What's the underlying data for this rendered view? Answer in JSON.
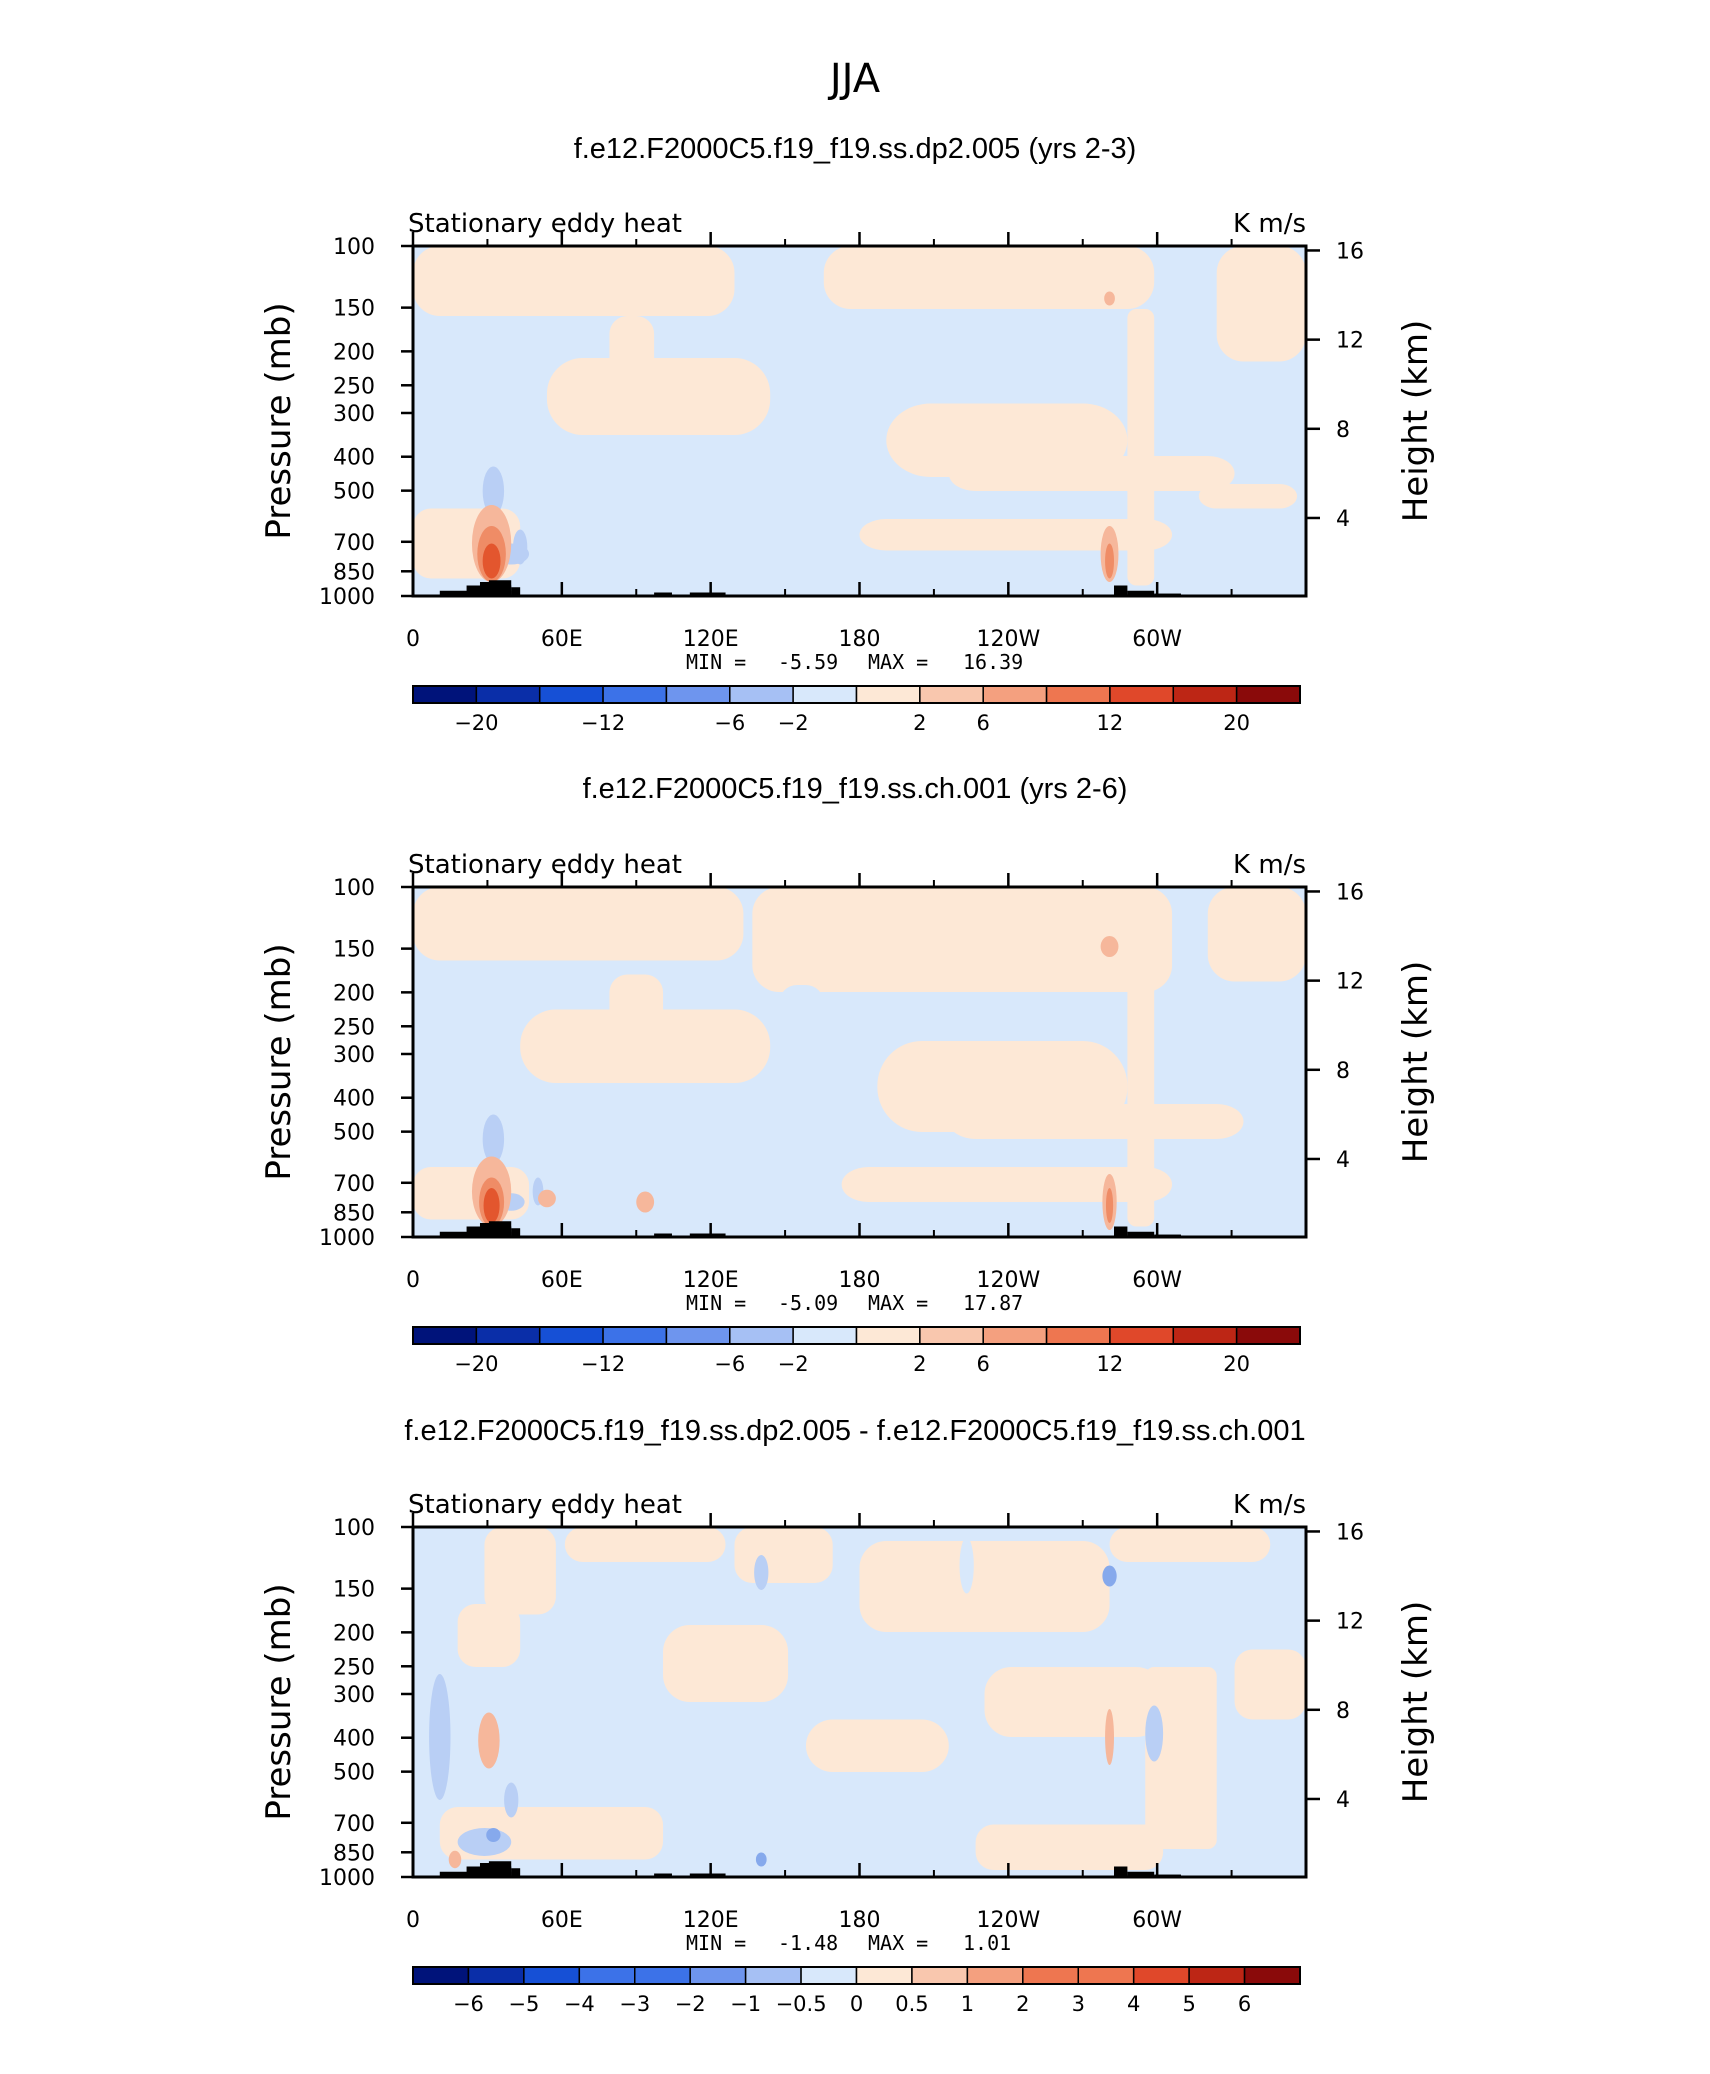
{
  "figure_title": "JJA",
  "colors": {
    "neg1": "#d8e8fb",
    "pos1": "#fde8d6",
    "neg2": "#b9cff5",
    "pos2": "#f6b79b",
    "pos3": "#ef8c66",
    "pos4": "#e3562e",
    "neg3": "#86a9ec",
    "topo": "#000000"
  },
  "colorbar_colors": [
    "#00137a",
    "#0a2ea8",
    "#1650d6",
    "#3c72e8",
    "#6e95ee",
    "#a6c0f4",
    "#d8e8fb",
    "#fde8d6",
    "#f9c7ae",
    "#f4a07f",
    "#ee7650",
    "#e0482a",
    "#bd2615",
    "#8a0a0a"
  ],
  "chart_data": [
    {
      "type": "heatmap",
      "title": "f.e12.F2000C5.f19_f19.ss.dp2.005 (yrs 2-3)",
      "left_label": "Stationary eddy heat",
      "units": "K m/s",
      "ylabel": "Pressure (mb)",
      "y2label": "Height (km)",
      "x_ticks": [
        "0",
        "60E",
        "120E",
        "180",
        "120W",
        "60W"
      ],
      "y_ticks": [
        "100",
        "150",
        "200",
        "250",
        "300",
        "400",
        "500",
        "700",
        "850",
        "1000"
      ],
      "y2_ticks": [
        "16",
        "12",
        "8",
        "4"
      ],
      "min_label": "MIN =",
      "min_value": "-5.59",
      "max_label": "MAX =",
      "max_value": "16.39",
      "colorbar_labels": [
        "−20",
        "−12",
        "−6",
        "−2",
        "2",
        "6",
        "12",
        "20"
      ]
    },
    {
      "type": "heatmap",
      "title": "f.e12.F2000C5.f19_f19.ss.ch.001 (yrs 2-6)",
      "left_label": "Stationary eddy heat",
      "units": "K m/s",
      "ylabel": "Pressure (mb)",
      "y2label": "Height (km)",
      "x_ticks": [
        "0",
        "60E",
        "120E",
        "180",
        "120W",
        "60W"
      ],
      "y_ticks": [
        "100",
        "150",
        "200",
        "250",
        "300",
        "400",
        "500",
        "700",
        "850",
        "1000"
      ],
      "y2_ticks": [
        "16",
        "12",
        "8",
        "4"
      ],
      "min_label": "MIN =",
      "min_value": "-5.09",
      "max_label": "MAX =",
      "max_value": "17.87",
      "colorbar_labels": [
        "−20",
        "−12",
        "−6",
        "−2",
        "2",
        "6",
        "12",
        "20"
      ]
    },
    {
      "type": "heatmap",
      "title": "f.e12.F2000C5.f19_f19.ss.dp2.005 - f.e12.F2000C5.f19_f19.ss.ch.001",
      "left_label": "Stationary eddy heat",
      "units": "K m/s",
      "ylabel": "Pressure (mb)",
      "y2label": "Height (km)",
      "x_ticks": [
        "0",
        "60E",
        "120E",
        "180",
        "120W",
        "60W"
      ],
      "y_ticks": [
        "100",
        "150",
        "200",
        "250",
        "300",
        "400",
        "500",
        "700",
        "850",
        "1000"
      ],
      "y2_ticks": [
        "16",
        "12",
        "8",
        "4"
      ],
      "min_label": "MIN =",
      "min_value": "-1.48",
      "max_label": "MAX =",
      "max_value": "1.01",
      "colorbar_labels": [
        "−6",
        "−5",
        "−4",
        "−3",
        "−2",
        "−1",
        "−0.5",
        "0",
        "0.5",
        "1",
        "2",
        "3",
        "4",
        "5",
        "6"
      ]
    }
  ]
}
